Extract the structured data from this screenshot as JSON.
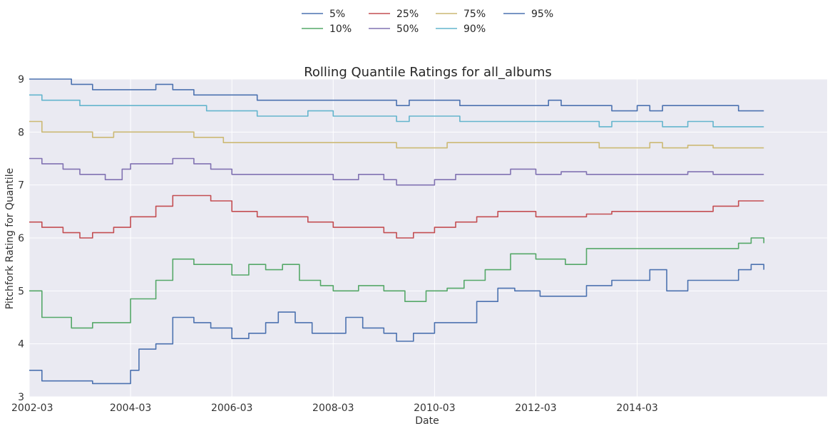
{
  "chart_data": {
    "type": "line",
    "title": "Rolling Quantile Ratings for all_albums",
    "xlabel": "Date",
    "ylabel": "Pitchfork Rating for Quantile",
    "x_ticks": [
      "2002-03",
      "2004-03",
      "2006-03",
      "2008-03",
      "2010-03",
      "2012-03",
      "2014-03"
    ],
    "x_range": [
      "2002-03",
      "2017-12"
    ],
    "y_ticks": [
      "3",
      "4",
      "5",
      "6",
      "7",
      "8",
      "9"
    ],
    "ylim": [
      3,
      9
    ],
    "grid": true,
    "legend_placement": "top-center",
    "background_color": "#EAEAF2",
    "grid_color": "#FFFFFF",
    "series": [
      {
        "name": "5%",
        "color": "#4C72B0",
        "points": [
          [
            "2002-03",
            3.5
          ],
          [
            "2002-06",
            3.3
          ],
          [
            "2003-01",
            3.3
          ],
          [
            "2003-06",
            3.25
          ],
          [
            "2004-03",
            3.5
          ],
          [
            "2004-05",
            3.9
          ],
          [
            "2004-09",
            4.0
          ],
          [
            "2005-01",
            4.5
          ],
          [
            "2005-06",
            4.4
          ],
          [
            "2005-10",
            4.3
          ],
          [
            "2006-03",
            4.1
          ],
          [
            "2006-07",
            4.2
          ],
          [
            "2006-11",
            4.4
          ],
          [
            "2007-02",
            4.6
          ],
          [
            "2007-06",
            4.4
          ],
          [
            "2007-10",
            4.2
          ],
          [
            "2008-02",
            4.2
          ],
          [
            "2008-06",
            4.5
          ],
          [
            "2008-10",
            4.3
          ],
          [
            "2009-03",
            4.2
          ],
          [
            "2009-06",
            4.05
          ],
          [
            "2009-10",
            4.2
          ],
          [
            "2010-03",
            4.4
          ],
          [
            "2010-08",
            4.4
          ],
          [
            "2011-01",
            4.8
          ],
          [
            "2011-06",
            5.05
          ],
          [
            "2011-10",
            5.0
          ],
          [
            "2012-04",
            4.9
          ],
          [
            "2012-10",
            4.9
          ],
          [
            "2013-03",
            5.1
          ],
          [
            "2013-09",
            5.2
          ],
          [
            "2014-03",
            5.2
          ],
          [
            "2014-06",
            5.4
          ],
          [
            "2014-10",
            5.0
          ],
          [
            "2015-03",
            5.2
          ],
          [
            "2015-09",
            5.2
          ],
          [
            "2016-03",
            5.4
          ],
          [
            "2016-06",
            5.5
          ],
          [
            "2016-09",
            5.4
          ]
        ]
      },
      {
        "name": "10%",
        "color": "#55A868",
        "points": [
          [
            "2002-03",
            5.0
          ],
          [
            "2002-06",
            4.5
          ],
          [
            "2002-11",
            4.5
          ],
          [
            "2003-01",
            4.3
          ],
          [
            "2003-06",
            4.4
          ],
          [
            "2003-11",
            4.4
          ],
          [
            "2004-03",
            4.85
          ],
          [
            "2004-09",
            5.2
          ],
          [
            "2005-01",
            5.6
          ],
          [
            "2005-06",
            5.5
          ],
          [
            "2005-10",
            5.5
          ],
          [
            "2006-03",
            5.3
          ],
          [
            "2006-07",
            5.5
          ],
          [
            "2006-11",
            5.4
          ],
          [
            "2007-03",
            5.5
          ],
          [
            "2007-07",
            5.2
          ],
          [
            "2007-12",
            5.1
          ],
          [
            "2008-03",
            5.0
          ],
          [
            "2008-09",
            5.1
          ],
          [
            "2009-03",
            5.0
          ],
          [
            "2009-08",
            4.8
          ],
          [
            "2010-01",
            5.0
          ],
          [
            "2010-06",
            5.05
          ],
          [
            "2010-10",
            5.2
          ],
          [
            "2011-03",
            5.4
          ],
          [
            "2011-09",
            5.7
          ],
          [
            "2012-03",
            5.6
          ],
          [
            "2012-10",
            5.5
          ],
          [
            "2013-03",
            5.8
          ],
          [
            "2013-09",
            5.8
          ],
          [
            "2014-03",
            5.8
          ],
          [
            "2014-09",
            5.8
          ],
          [
            "2015-03",
            5.8
          ],
          [
            "2015-09",
            5.8
          ],
          [
            "2016-03",
            5.9
          ],
          [
            "2016-06",
            6.0
          ],
          [
            "2016-09",
            5.9
          ]
        ]
      },
      {
        "name": "25%",
        "color": "#C44E52",
        "points": [
          [
            "2002-03",
            6.3
          ],
          [
            "2002-06",
            6.2
          ],
          [
            "2002-11",
            6.1
          ],
          [
            "2003-03",
            6.0
          ],
          [
            "2003-06",
            6.1
          ],
          [
            "2003-11",
            6.2
          ],
          [
            "2004-03",
            6.4
          ],
          [
            "2004-09",
            6.6
          ],
          [
            "2005-01",
            6.8
          ],
          [
            "2005-06",
            6.8
          ],
          [
            "2005-10",
            6.7
          ],
          [
            "2006-03",
            6.5
          ],
          [
            "2006-09",
            6.4
          ],
          [
            "2007-03",
            6.4
          ],
          [
            "2007-09",
            6.3
          ],
          [
            "2008-03",
            6.2
          ],
          [
            "2008-09",
            6.2
          ],
          [
            "2009-03",
            6.1
          ],
          [
            "2009-06",
            6.0
          ],
          [
            "2009-10",
            6.1
          ],
          [
            "2010-03",
            6.2
          ],
          [
            "2010-08",
            6.3
          ],
          [
            "2011-01",
            6.4
          ],
          [
            "2011-06",
            6.5
          ],
          [
            "2011-10",
            6.5
          ],
          [
            "2012-03",
            6.4
          ],
          [
            "2012-09",
            6.4
          ],
          [
            "2013-03",
            6.45
          ],
          [
            "2013-09",
            6.5
          ],
          [
            "2014-03",
            6.5
          ],
          [
            "2014-09",
            6.5
          ],
          [
            "2015-03",
            6.5
          ],
          [
            "2015-09",
            6.6
          ],
          [
            "2016-03",
            6.7
          ],
          [
            "2016-09",
            6.7
          ]
        ]
      },
      {
        "name": "50%",
        "color": "#8172B2",
        "points": [
          [
            "2002-03",
            7.5
          ],
          [
            "2002-06",
            7.4
          ],
          [
            "2002-11",
            7.3
          ],
          [
            "2003-03",
            7.2
          ],
          [
            "2003-09",
            7.1
          ],
          [
            "2004-01",
            7.3
          ],
          [
            "2004-03",
            7.4
          ],
          [
            "2004-09",
            7.4
          ],
          [
            "2005-01",
            7.5
          ],
          [
            "2005-06",
            7.4
          ],
          [
            "2005-10",
            7.3
          ],
          [
            "2006-03",
            7.2
          ],
          [
            "2006-09",
            7.2
          ],
          [
            "2007-03",
            7.2
          ],
          [
            "2007-09",
            7.2
          ],
          [
            "2008-03",
            7.1
          ],
          [
            "2008-09",
            7.2
          ],
          [
            "2009-03",
            7.1
          ],
          [
            "2009-06",
            7.0
          ],
          [
            "2009-10",
            7.0
          ],
          [
            "2010-03",
            7.1
          ],
          [
            "2010-08",
            7.2
          ],
          [
            "2011-03",
            7.2
          ],
          [
            "2011-09",
            7.3
          ],
          [
            "2012-03",
            7.2
          ],
          [
            "2012-09",
            7.25
          ],
          [
            "2013-03",
            7.2
          ],
          [
            "2013-09",
            7.2
          ],
          [
            "2014-03",
            7.2
          ],
          [
            "2014-09",
            7.2
          ],
          [
            "2015-03",
            7.25
          ],
          [
            "2015-09",
            7.2
          ],
          [
            "2016-03",
            7.2
          ],
          [
            "2016-09",
            7.2
          ]
        ]
      },
      {
        "name": "75%",
        "color": "#CCB974",
        "points": [
          [
            "2002-03",
            8.2
          ],
          [
            "2002-06",
            8.0
          ],
          [
            "2003-03",
            8.0
          ],
          [
            "2003-06",
            7.9
          ],
          [
            "2003-11",
            8.0
          ],
          [
            "2004-03",
            8.0
          ],
          [
            "2005-01",
            8.0
          ],
          [
            "2005-06",
            7.9
          ],
          [
            "2006-01",
            7.8
          ],
          [
            "2006-09",
            7.8
          ],
          [
            "2007-03",
            7.8
          ],
          [
            "2008-03",
            7.8
          ],
          [
            "2009-03",
            7.8
          ],
          [
            "2009-06",
            7.7
          ],
          [
            "2010-03",
            7.7
          ],
          [
            "2010-06",
            7.8
          ],
          [
            "2011-03",
            7.8
          ],
          [
            "2012-03",
            7.8
          ],
          [
            "2013-03",
            7.8
          ],
          [
            "2013-06",
            7.7
          ],
          [
            "2014-03",
            7.7
          ],
          [
            "2014-06",
            7.8
          ],
          [
            "2014-09",
            7.7
          ],
          [
            "2015-03",
            7.75
          ],
          [
            "2015-09",
            7.7
          ],
          [
            "2016-03",
            7.7
          ],
          [
            "2016-09",
            7.7
          ]
        ]
      },
      {
        "name": "90%",
        "color": "#64B5CD",
        "points": [
          [
            "2002-03",
            8.7
          ],
          [
            "2002-06",
            8.6
          ],
          [
            "2003-03",
            8.5
          ],
          [
            "2004-03",
            8.5
          ],
          [
            "2005-06",
            8.5
          ],
          [
            "2005-09",
            8.4
          ],
          [
            "2006-03",
            8.4
          ],
          [
            "2006-09",
            8.3
          ],
          [
            "2007-06",
            8.3
          ],
          [
            "2007-09",
            8.4
          ],
          [
            "2008-03",
            8.3
          ],
          [
            "2009-03",
            8.3
          ],
          [
            "2009-06",
            8.2
          ],
          [
            "2009-09",
            8.3
          ],
          [
            "2010-03",
            8.3
          ],
          [
            "2010-09",
            8.2
          ],
          [
            "2011-09",
            8.2
          ],
          [
            "2012-03",
            8.2
          ],
          [
            "2013-03",
            8.2
          ],
          [
            "2013-06",
            8.1
          ],
          [
            "2013-09",
            8.2
          ],
          [
            "2014-03",
            8.2
          ],
          [
            "2014-09",
            8.1
          ],
          [
            "2015-03",
            8.2
          ],
          [
            "2015-09",
            8.1
          ],
          [
            "2016-03",
            8.1
          ],
          [
            "2016-09",
            8.1
          ]
        ]
      },
      {
        "name": "95%",
        "color": "#4C72B0",
        "points": [
          [
            "2002-03",
            9.0
          ],
          [
            "2003-01",
            8.9
          ],
          [
            "2003-06",
            8.8
          ],
          [
            "2003-11",
            8.8
          ],
          [
            "2004-03",
            8.8
          ],
          [
            "2004-09",
            8.9
          ],
          [
            "2005-01",
            8.8
          ],
          [
            "2005-06",
            8.7
          ],
          [
            "2005-10",
            8.7
          ],
          [
            "2006-03",
            8.7
          ],
          [
            "2006-09",
            8.6
          ],
          [
            "2007-03",
            8.6
          ],
          [
            "2007-09",
            8.6
          ],
          [
            "2008-03",
            8.6
          ],
          [
            "2009-03",
            8.6
          ],
          [
            "2009-06",
            8.5
          ],
          [
            "2009-09",
            8.6
          ],
          [
            "2010-03",
            8.6
          ],
          [
            "2010-09",
            8.5
          ],
          [
            "2011-09",
            8.5
          ],
          [
            "2012-03",
            8.5
          ],
          [
            "2012-06",
            8.6
          ],
          [
            "2012-09",
            8.5
          ],
          [
            "2013-03",
            8.5
          ],
          [
            "2013-09",
            8.4
          ],
          [
            "2014-03",
            8.5
          ],
          [
            "2014-06",
            8.4
          ],
          [
            "2014-09",
            8.5
          ],
          [
            "2015-03",
            8.5
          ],
          [
            "2015-09",
            8.5
          ],
          [
            "2016-03",
            8.4
          ],
          [
            "2016-09",
            8.4
          ]
        ]
      }
    ]
  }
}
